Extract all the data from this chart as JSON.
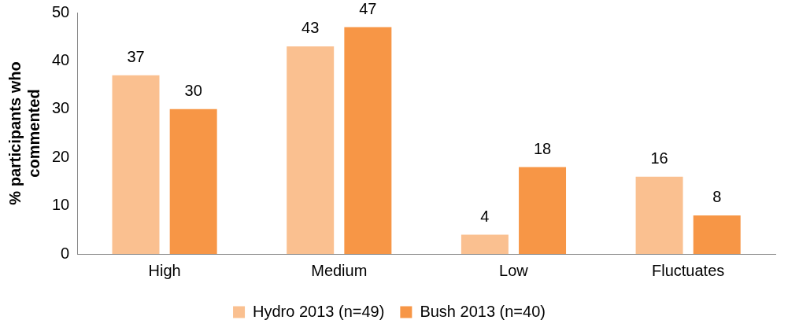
{
  "chart_data": {
    "type": "bar",
    "ylabel": "% participants who commented",
    "categories": [
      "High",
      "Medium",
      "Low",
      "Fluctuates"
    ],
    "series": [
      {
        "name": "Hydro 2013 (n=49)",
        "color": "#fac090",
        "values": [
          37,
          43,
          4,
          16
        ]
      },
      {
        "name": "Bush 2013 (n=40)",
        "color": "#f79646",
        "values": [
          30,
          47,
          18,
          8
        ]
      }
    ],
    "ylim": [
      0,
      50
    ],
    "yticks": [
      0,
      10,
      20,
      30,
      40,
      50
    ],
    "grid": false,
    "legend": "bottom",
    "data_labels": true
  }
}
